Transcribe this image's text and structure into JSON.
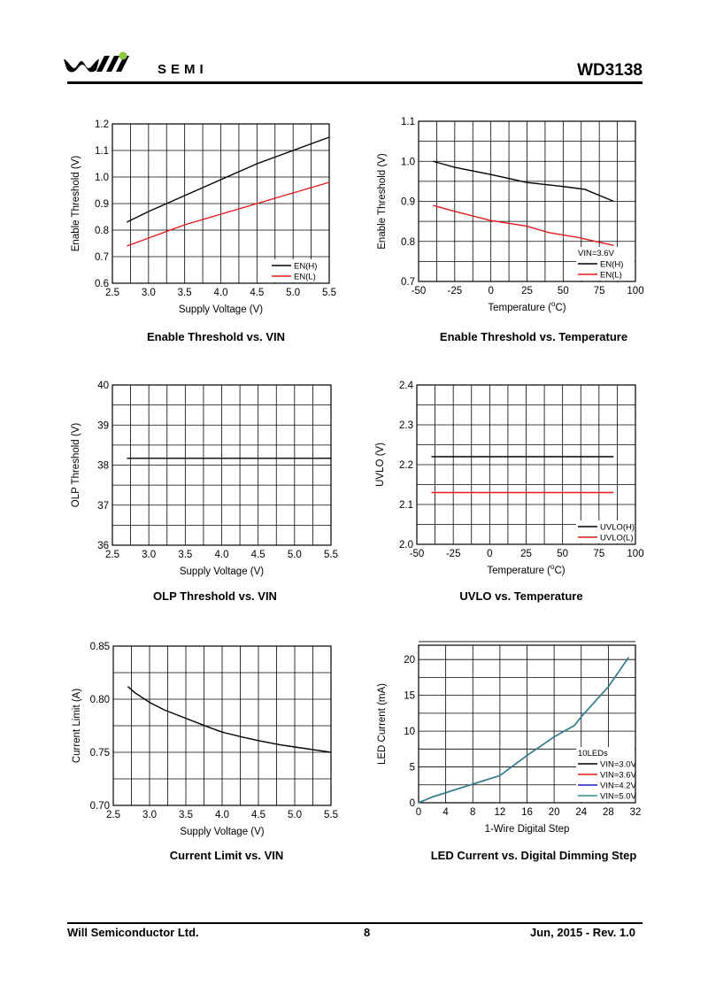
{
  "header": {
    "brand": "SEMI",
    "part_number": "WD3138",
    "logo_color_dot": "#8dc63f"
  },
  "footer": {
    "company": "Will Semiconductor Ltd.",
    "page": "8",
    "date_rev": "Jun, 2015 - Rev. 1.0"
  },
  "chart_data": [
    {
      "id": "c1",
      "type": "line",
      "caption": "Enable Threshold vs. VIN",
      "xlabel": "Supply Voltage (V)",
      "ylabel": "Enable Threshold (V)",
      "xlim": [
        2.5,
        5.5
      ],
      "ylim": [
        0.6,
        1.2
      ],
      "xticks": [
        "2.5",
        "3.0",
        "3.5",
        "4.0",
        "4.5",
        "5.0",
        "5.5"
      ],
      "yticks": [
        "0.6",
        "0.7",
        "0.8",
        "0.9",
        "1.0",
        "1.1",
        "1.2"
      ],
      "xgrid": [
        2.5,
        2.75,
        3.0,
        3.25,
        3.5,
        3.75,
        4.0,
        4.25,
        4.5,
        4.75,
        5.0,
        5.25,
        5.5
      ],
      "ygrid": [
        0.6,
        0.7,
        0.8,
        0.9,
        1.0,
        1.1,
        1.2
      ],
      "legend": "bottom-right",
      "series": [
        {
          "name": "EN(H)",
          "color": "#000000",
          "x": [
            2.7,
            3.0,
            3.5,
            4.0,
            4.5,
            5.0,
            5.5
          ],
          "y": [
            0.83,
            0.87,
            0.93,
            0.99,
            1.05,
            1.1,
            1.15
          ]
        },
        {
          "name": "EN(L)",
          "color": "#e41a1c",
          "x": [
            2.7,
            3.0,
            3.5,
            4.0,
            4.5,
            5.0,
            5.5
          ],
          "y": [
            0.74,
            0.77,
            0.82,
            0.86,
            0.9,
            0.94,
            0.98
          ]
        }
      ]
    },
    {
      "id": "c2",
      "type": "line",
      "caption": "Enable Threshold vs. Temperature",
      "xlabel": "Temperature (",
      "xlabel_unit": "o",
      "xlabel_end": "C)",
      "ylabel": "Enable Threshold (V)",
      "xlim": [
        -50,
        100
      ],
      "ylim": [
        0.7,
        1.1
      ],
      "xticks": [
        "-50",
        "-25",
        "0",
        "25",
        "50",
        "75",
        "100"
      ],
      "yticks": [
        "0.7",
        "0.8",
        "0.9",
        "1.0",
        "1.1"
      ],
      "xgrid": [
        -50,
        -37.5,
        -25,
        -12.5,
        0,
        12.5,
        25,
        37.5,
        50,
        62.5,
        75,
        87.5,
        100
      ],
      "ygrid": [
        0.7,
        0.75,
        0.8,
        0.85,
        0.9,
        0.95,
        1.0,
        1.05,
        1.1
      ],
      "legend": "bottom-right",
      "legend_note": "VIN=3.6V",
      "series": [
        {
          "name": "EN(H)",
          "color": "#000000",
          "x": [
            -40,
            -25,
            0,
            25,
            50,
            65,
            85
          ],
          "y": [
            1.0,
            0.985,
            0.967,
            0.947,
            0.937,
            0.93,
            0.9
          ]
        },
        {
          "name": "EN(L)",
          "color": "#e41a1c",
          "x": [
            -40,
            -25,
            0,
            25,
            40,
            60,
            85
          ],
          "y": [
            0.89,
            0.875,
            0.852,
            0.838,
            0.822,
            0.81,
            0.79
          ]
        }
      ]
    },
    {
      "id": "c3",
      "type": "line",
      "caption": "OLP Threshold vs. VIN",
      "xlabel": "Supply Voltage (V)",
      "ylabel": "OLP Threshold (V)",
      "xlim": [
        2.5,
        5.5
      ],
      "ylim": [
        36,
        40
      ],
      "xticks": [
        "2.5",
        "3.0",
        "3.5",
        "4.0",
        "4.5",
        "5.0",
        "5.5"
      ],
      "yticks": [
        "36",
        "37",
        "38",
        "39",
        "40"
      ],
      "xgrid": [
        2.5,
        2.75,
        3.0,
        3.25,
        3.5,
        3.75,
        4.0,
        4.25,
        4.5,
        4.75,
        5.0,
        5.25,
        5.5
      ],
      "ygrid": [
        36,
        36.5,
        37,
        37.5,
        38,
        38.5,
        39,
        39.5,
        40
      ],
      "legend": "none",
      "series": [
        {
          "color": "#000000",
          "x": [
            2.7,
            5.5
          ],
          "y": [
            38.17,
            38.17
          ]
        }
      ]
    },
    {
      "id": "c4",
      "type": "line",
      "caption": "UVLO vs. Temperature",
      "xlabel": "Temperature (",
      "xlabel_unit": "o",
      "xlabel_end": "C)",
      "ylabel": "UVLO (V)",
      "xlim": [
        -50,
        100
      ],
      "ylim": [
        2.0,
        2.4
      ],
      "xticks": [
        "-50",
        "-25",
        "0",
        "25",
        "50",
        "75",
        "100"
      ],
      "yticks": [
        "2.0",
        "2.1",
        "2.2",
        "2.3",
        "2.4"
      ],
      "xgrid": [
        -50,
        -37.5,
        -25,
        -12.5,
        0,
        12.5,
        25,
        37.5,
        50,
        62.5,
        75,
        87.5,
        100
      ],
      "ygrid": [
        2.0,
        2.05,
        2.1,
        2.15,
        2.2,
        2.25,
        2.3,
        2.35,
        2.4
      ],
      "legend": "bottom-right",
      "series": [
        {
          "name": "UVLO(H)",
          "color": "#000000",
          "x": [
            -40,
            85
          ],
          "y": [
            2.22,
            2.22
          ]
        },
        {
          "name": "UVLO(L)",
          "color": "#e41a1c",
          "x": [
            -40,
            85
          ],
          "y": [
            2.13,
            2.13
          ]
        }
      ]
    },
    {
      "id": "c5",
      "type": "line",
      "caption": "Current Limit vs. VIN",
      "xlabel": "Supply Voltage (V)",
      "ylabel": "Current Limit (A)",
      "xlim": [
        2.5,
        5.5
      ],
      "ylim": [
        0.7,
        0.85
      ],
      "xticks": [
        "2.5",
        "3.0",
        "3.5",
        "4.0",
        "4.5",
        "5.0",
        "5.5"
      ],
      "yticks": [
        "0.70",
        "0.75",
        "0.80",
        "0.85"
      ],
      "xgrid": [
        2.5,
        2.75,
        3.0,
        3.25,
        3.5,
        3.75,
        4.0,
        4.25,
        4.5,
        4.75,
        5.0,
        5.25,
        5.5
      ],
      "ygrid": [
        0.7,
        0.725,
        0.75,
        0.775,
        0.8,
        0.825,
        0.85
      ],
      "legend": "none",
      "series": [
        {
          "color": "#000000",
          "x": [
            2.7,
            2.8,
            3.0,
            3.2,
            3.5,
            3.8,
            4.0,
            4.3,
            4.5,
            4.8,
            5.0,
            5.3,
            5.5
          ],
          "y": [
            0.812,
            0.806,
            0.797,
            0.79,
            0.782,
            0.774,
            0.769,
            0.764,
            0.761,
            0.757,
            0.755,
            0.752,
            0.75
          ]
        }
      ]
    },
    {
      "id": "c6",
      "type": "line",
      "caption": "LED Current vs. Digital Dimming Step",
      "xlabel": "1-Wire Digital Step",
      "ylabel": "LED Current (mA)",
      "xlim": [
        0,
        32
      ],
      "ylim": [
        0,
        22
      ],
      "xticks": [
        "0",
        "4",
        "8",
        "12",
        "16",
        "20",
        "24",
        "28",
        "32"
      ],
      "xtick_values": [
        0,
        4,
        8,
        12,
        16,
        20,
        24,
        28,
        32
      ],
      "yticks": [
        "0",
        "5",
        "10",
        "15",
        "20"
      ],
      "ytick_values": [
        0,
        5,
        10,
        15,
        20
      ],
      "xgrid": [
        0,
        4,
        8,
        12,
        16,
        20,
        24,
        28,
        32
      ],
      "ygrid": [
        0,
        2.5,
        5,
        7.5,
        10,
        12.5,
        15,
        17.5,
        20,
        22.5
      ],
      "legend": "bottom-right",
      "legend_note": "10LEDs",
      "series": [
        {
          "name": "VIN=3.0V",
          "color": "#000000",
          "x": [
            0,
            1,
            2,
            4,
            8,
            12,
            16,
            20,
            23,
            24,
            28,
            31
          ],
          "y": [
            0,
            0.4,
            0.8,
            1.4,
            2.6,
            3.8,
            6.6,
            9.2,
            10.8,
            12.0,
            16.2,
            20.3
          ]
        },
        {
          "name": "VIN=3.6V",
          "color": "#e41a1c",
          "x": [
            0,
            1,
            2,
            4,
            8,
            12,
            16,
            20,
            23,
            24,
            28,
            31
          ],
          "y": [
            0,
            0.4,
            0.8,
            1.4,
            2.6,
            3.8,
            6.6,
            9.2,
            10.8,
            12.0,
            16.2,
            20.3
          ]
        },
        {
          "name": "VIN=4.2V",
          "color": "#1f1fd0",
          "x": [
            0,
            1,
            2,
            4,
            8,
            12,
            16,
            20,
            23,
            24,
            28,
            31
          ],
          "y": [
            0,
            0.4,
            0.8,
            1.4,
            2.6,
            3.8,
            6.6,
            9.2,
            10.8,
            12.0,
            16.2,
            20.3
          ]
        },
        {
          "name": "VIN=5.0V",
          "color": "#2a8c8c",
          "x": [
            0,
            1,
            2,
            4,
            8,
            12,
            16,
            20,
            23,
            24,
            28,
            31
          ],
          "y": [
            0,
            0.4,
            0.8,
            1.4,
            2.6,
            3.8,
            6.6,
            9.2,
            10.8,
            12.0,
            16.2,
            20.3
          ]
        }
      ]
    }
  ]
}
